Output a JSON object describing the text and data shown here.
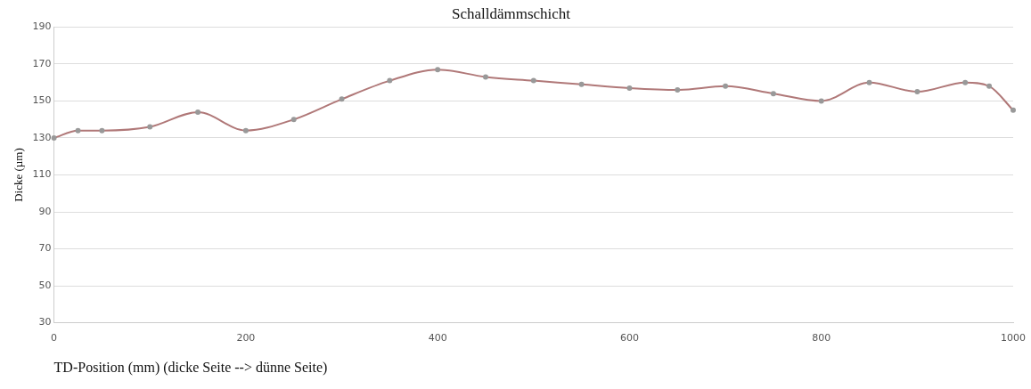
{
  "chart_data": {
    "type": "line",
    "title": "Schalldämmschicht",
    "xlabel": "TD-Position (mm) (dicke Seite --> dünne Seite)",
    "ylabel": "Dicke (µm)",
    "x": [
      0,
      25,
      50,
      100,
      150,
      200,
      250,
      300,
      350,
      400,
      450,
      500,
      550,
      600,
      650,
      700,
      750,
      800,
      850,
      900,
      950,
      975,
      1000
    ],
    "series": [
      {
        "color": "#b07878",
        "values": [
          130,
          134,
          134,
          136,
          144,
          134,
          140,
          151,
          161,
          167,
          163,
          161,
          159,
          157,
          156,
          158,
          154,
          150,
          160,
          155,
          160,
          158,
          145
        ]
      }
    ],
    "xlim": [
      0,
      1000
    ],
    "xticks": [
      0,
      200,
      400,
      600,
      800,
      1000
    ],
    "ylim": [
      30,
      190
    ],
    "yticks": [
      30,
      50,
      70,
      90,
      110,
      130,
      150,
      170,
      190
    ],
    "grid": "y",
    "marker": "circle",
    "line_style": "solid"
  }
}
